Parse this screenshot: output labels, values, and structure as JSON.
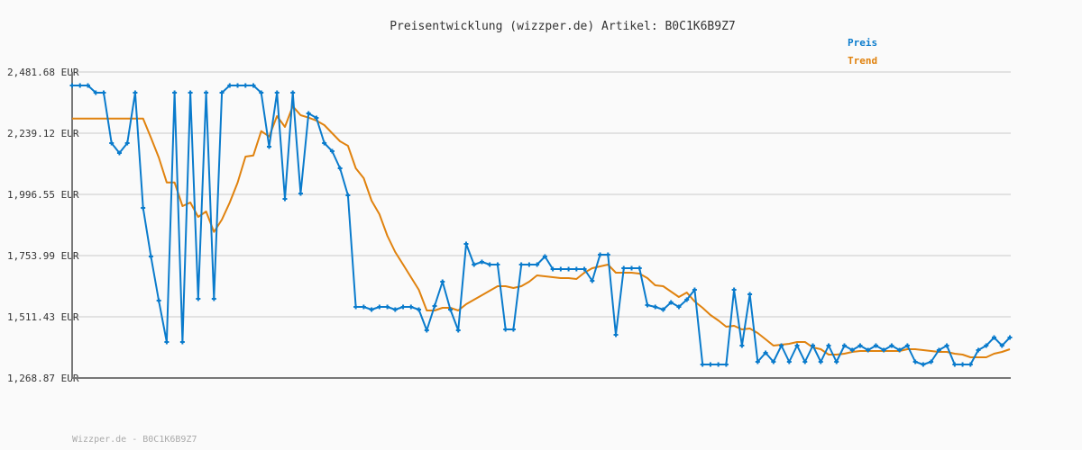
{
  "chart_data": {
    "type": "line",
    "title": "Preisentwicklung (wizzper.de) Artikel: B0C1K6B9Z7",
    "xlabel": "",
    "ylabel": "",
    "ylim": [
      1268.87,
      2481.68
    ],
    "y_ticks": [
      "2,481.68 EUR",
      "2,239.12 EUR",
      "1,996.55 EUR",
      "1,753.99 EUR",
      "1,511.43 EUR",
      "1,268.87 EUR"
    ],
    "y_tick_values": [
      2481.68,
      2239.12,
      1996.55,
      1753.99,
      1511.43,
      1268.87
    ],
    "grid": true,
    "legend_position": "top-right",
    "series": [
      {
        "name": "Preis",
        "color": "#0a7bcc",
        "markers": true,
        "values": [
          2428.2,
          2428.2,
          2428.2,
          2399.6,
          2399.6,
          2199.9,
          2160.7,
          2199.9,
          2399.6,
          1943.0,
          1750.4,
          1575.6,
          1411.6,
          2399.6,
          1411.6,
          2399.6,
          1582.8,
          2399.6,
          1582.8,
          2399.6,
          2428.2,
          2428.2,
          2428.2,
          2428.2,
          2399.6,
          2185.6,
          2399.6,
          1978.7,
          2399.6,
          2000.1,
          2317.6,
          2299.8,
          2199.9,
          2167.8,
          2100.0,
          1993.0,
          1550.7,
          1550.7,
          1540.0,
          1550.7,
          1550.7,
          1540.0,
          1550.7,
          1550.7,
          1540.0,
          1457.9,
          1554.3,
          1650.6,
          1540.0,
          1457.9,
          1800.4,
          1718.3,
          1729.0,
          1718.3,
          1718.3,
          1461.5,
          1461.5,
          1718.3,
          1718.3,
          1718.3,
          1750.4,
          1700.5,
          1700.5,
          1700.5,
          1700.5,
          1700.5,
          1654.1,
          1757.6,
          1757.6,
          1440.1,
          1704.1,
          1704.1,
          1704.1,
          1557.8,
          1550.7,
          1540.0,
          1568.5,
          1550.7,
          1579.2,
          1618.5,
          1322.4,
          1322.4,
          1322.4,
          1322.4,
          1618.5,
          1397.3,
          1600.6,
          1333.1,
          1368.8,
          1333.1,
          1397.3,
          1333.1,
          1397.3,
          1333.1,
          1397.3,
          1333.1,
          1397.3,
          1333.1,
          1397.3,
          1379.5,
          1397.3,
          1379.5,
          1397.3,
          1379.5,
          1397.3,
          1379.5,
          1397.3,
          1333.1,
          1322.4,
          1333.1,
          1379.5,
          1397.3,
          1322.4,
          1322.4,
          1322.4,
          1379.5,
          1397.3,
          1429.4,
          1397.3,
          1429.4
        ]
      },
      {
        "name": "Trend",
        "color": "#e0820e",
        "markers": false,
        "values": [
          2297.3,
          2297.3,
          2297.3,
          2297.3,
          2297.3,
          2297.3,
          2297.3,
          2297.3,
          2297.3,
          2297.3,
          2221.3,
          2142.8,
          2044.0,
          2044.0,
          1950.2,
          1964.5,
          1907.4,
          1928.8,
          1847.8,
          1896.7,
          1964.5,
          2043.0,
          2146.4,
          2151.0,
          2247.3,
          2225.9,
          2306.9,
          2264.1,
          2346.2,
          2310.5,
          2300.9,
          2289.1,
          2271.2,
          2239.1,
          2207.0,
          2189.2,
          2100.0,
          2060.8,
          1971.6,
          1918.1,
          1832.5,
          1768.3,
          1718.4,
          1668.4,
          1618.5,
          1536.4,
          1536.4,
          1547.1,
          1547.1,
          1536.4,
          1561.4,
          1579.2,
          1597.1,
          1614.9,
          1632.7,
          1632.7,
          1625.6,
          1632.7,
          1650.6,
          1675.6,
          1672.0,
          1668.4,
          1664.9,
          1664.9,
          1661.3,
          1686.3,
          1704.1,
          1711.2,
          1718.4,
          1686.3,
          1686.3,
          1686.3,
          1682.7,
          1664.9,
          1636.3,
          1632.7,
          1611.4,
          1589.9,
          1607.8,
          1572.1,
          1547.1,
          1518.6,
          1497.2,
          1472.2,
          1475.8,
          1461.5,
          1465.1,
          1447.3,
          1422.3,
          1397.3,
          1400.9,
          1404.5,
          1411.6,
          1411.6,
          1390.2,
          1383.1,
          1361.7,
          1361.7,
          1365.2,
          1372.4,
          1375.9,
          1375.9,
          1375.9,
          1375.9,
          1375.9,
          1375.9,
          1383.1,
          1383.1,
          1379.5,
          1375.9,
          1372.4,
          1372.4,
          1365.2,
          1361.7,
          1351.0,
          1351.0,
          1351.0,
          1365.2,
          1372.4,
          1383.1
        ]
      }
    ]
  },
  "footer": "Wizzper.de - B0C1K6B9Z7"
}
